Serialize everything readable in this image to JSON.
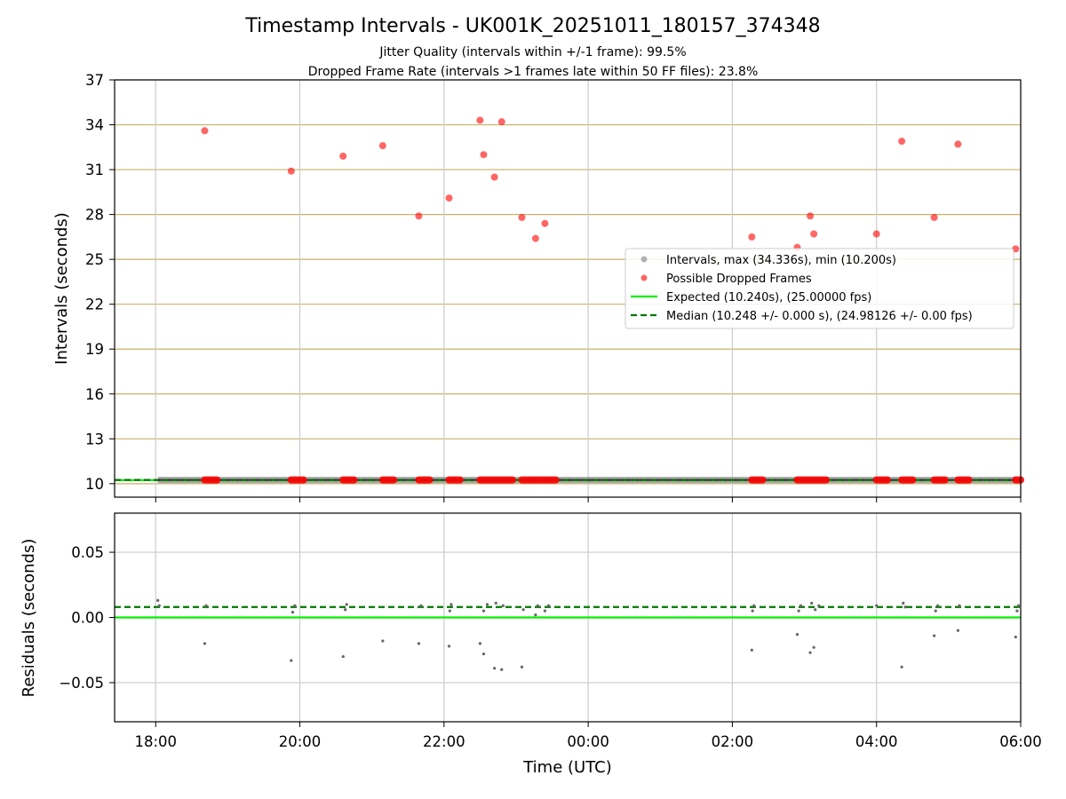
{
  "chart_data": {
    "type": "scatter",
    "title": "Timestamp Intervals - UK001K_20251011_180157_374348",
    "subtitle_lines": [
      "Jitter Quality (intervals within +/-1 frame): 99.5%",
      "Dropped Frame Rate (intervals >1 frames late within 50 FF files): 23.8%"
    ],
    "xlabel": "Time (UTC)",
    "x_unit": "hours since 18:00 UTC",
    "xlim": [
      -0.57,
      12.0
    ],
    "x_ticks": [
      0,
      2,
      4,
      6,
      8,
      10,
      12
    ],
    "x_tick_labels": [
      "18:00",
      "20:00",
      "22:00",
      "00:00",
      "02:00",
      "04:00",
      "06:00"
    ],
    "top_panel": {
      "ylabel": "Intervals (seconds)",
      "ylim": [
        9.1,
        37.0
      ],
      "y_ticks": [
        10,
        13,
        16,
        19,
        22,
        25,
        28,
        31,
        34,
        37
      ],
      "y_tick_labels": [
        "10",
        "13",
        "16",
        "19",
        "22",
        "25",
        "28",
        "31",
        "34",
        "37"
      ],
      "expected_interval": 10.24,
      "median_interval": 10.248,
      "interval_band": {
        "x_start": 0.03,
        "x_end": 12.0,
        "y": 10.25
      },
      "dropped_frames_high": [
        {
          "x": 0.68,
          "y": 33.6
        },
        {
          "x": 1.88,
          "y": 30.9
        },
        {
          "x": 2.6,
          "y": 31.9
        },
        {
          "x": 3.15,
          "y": 32.6
        },
        {
          "x": 3.65,
          "y": 27.9
        },
        {
          "x": 4.07,
          "y": 29.1
        },
        {
          "x": 4.5,
          "y": 34.3
        },
        {
          "x": 4.55,
          "y": 32.0
        },
        {
          "x": 4.7,
          "y": 30.5
        },
        {
          "x": 4.8,
          "y": 34.2
        },
        {
          "x": 5.08,
          "y": 27.8
        },
        {
          "x": 5.27,
          "y": 26.4
        },
        {
          "x": 5.4,
          "y": 27.4
        },
        {
          "x": 8.27,
          "y": 26.5
        },
        {
          "x": 8.9,
          "y": 25.8
        },
        {
          "x": 9.08,
          "y": 27.9
        },
        {
          "x": 9.13,
          "y": 26.7
        },
        {
          "x": 10.0,
          "y": 26.7
        },
        {
          "x": 10.35,
          "y": 32.9
        },
        {
          "x": 10.8,
          "y": 27.8
        },
        {
          "x": 11.13,
          "y": 32.7
        },
        {
          "x": 11.93,
          "y": 25.7
        }
      ],
      "dropped_frames_baseline_segments": [
        [
          0.68,
          0.85
        ],
        [
          1.88,
          2.05
        ],
        [
          2.6,
          2.75
        ],
        [
          3.15,
          3.3
        ],
        [
          3.65,
          3.8
        ],
        [
          4.07,
          4.22
        ],
        [
          4.5,
          4.95
        ],
        [
          5.08,
          5.55
        ],
        [
          8.27,
          8.42
        ],
        [
          8.9,
          9.3
        ],
        [
          10.0,
          10.15
        ],
        [
          10.35,
          10.5
        ],
        [
          10.8,
          10.95
        ],
        [
          11.13,
          11.28
        ],
        [
          11.93,
          12.0
        ]
      ]
    },
    "bottom_panel": {
      "ylabel": "Residuals (seconds)",
      "ylim": [
        -0.08,
        0.08
      ],
      "y_ticks": [
        -0.05,
        0.0,
        0.05
      ],
      "y_tick_labels": [
        "−0.05",
        "0.00",
        "0.05"
      ],
      "expected_residual": 0.0,
      "median_residual": 0.008,
      "residual_points": [
        {
          "x": 0.03,
          "y": 0.013
        },
        {
          "x": 0.05,
          "y": 0.009
        },
        {
          "x": 0.68,
          "y": -0.02
        },
        {
          "x": 0.7,
          "y": 0.009
        },
        {
          "x": 1.88,
          "y": -0.033
        },
        {
          "x": 1.9,
          "y": 0.004
        },
        {
          "x": 1.93,
          "y": 0.009
        },
        {
          "x": 2.6,
          "y": -0.03
        },
        {
          "x": 2.63,
          "y": 0.006
        },
        {
          "x": 2.65,
          "y": 0.01
        },
        {
          "x": 3.15,
          "y": -0.018
        },
        {
          "x": 3.65,
          "y": -0.02
        },
        {
          "x": 3.68,
          "y": 0.009
        },
        {
          "x": 4.07,
          "y": -0.022
        },
        {
          "x": 4.08,
          "y": 0.005
        },
        {
          "x": 4.1,
          "y": 0.01
        },
        {
          "x": 4.5,
          "y": -0.02
        },
        {
          "x": 4.55,
          "y": -0.028
        },
        {
          "x": 4.55,
          "y": 0.005
        },
        {
          "x": 4.6,
          "y": 0.01
        },
        {
          "x": 4.7,
          "y": -0.039
        },
        {
          "x": 4.72,
          "y": 0.011
        },
        {
          "x": 4.8,
          "y": -0.04
        },
        {
          "x": 4.82,
          "y": 0.009
        },
        {
          "x": 5.08,
          "y": -0.038
        },
        {
          "x": 5.1,
          "y": 0.006
        },
        {
          "x": 5.27,
          "y": 0.002
        },
        {
          "x": 5.3,
          "y": 0.009
        },
        {
          "x": 5.4,
          "y": 0.005
        },
        {
          "x": 5.45,
          "y": 0.009
        },
        {
          "x": 8.27,
          "y": -0.025
        },
        {
          "x": 8.28,
          "y": 0.005
        },
        {
          "x": 8.3,
          "y": 0.009
        },
        {
          "x": 8.9,
          "y": -0.013
        },
        {
          "x": 8.92,
          "y": 0.005
        },
        {
          "x": 8.95,
          "y": 0.009
        },
        {
          "x": 9.08,
          "y": -0.027
        },
        {
          "x": 9.1,
          "y": 0.011
        },
        {
          "x": 9.13,
          "y": -0.023
        },
        {
          "x": 9.15,
          "y": 0.006
        },
        {
          "x": 9.2,
          "y": 0.009
        },
        {
          "x": 10.0,
          "y": 0.009
        },
        {
          "x": 10.35,
          "y": -0.038
        },
        {
          "x": 10.37,
          "y": 0.011
        },
        {
          "x": 10.4,
          "y": 0.008
        },
        {
          "x": 10.8,
          "y": -0.014
        },
        {
          "x": 10.82,
          "y": 0.005
        },
        {
          "x": 10.85,
          "y": 0.009
        },
        {
          "x": 11.13,
          "y": -0.01
        },
        {
          "x": 11.15,
          "y": 0.009
        },
        {
          "x": 11.93,
          "y": -0.015
        },
        {
          "x": 11.95,
          "y": 0.005
        },
        {
          "x": 11.97,
          "y": 0.009
        }
      ]
    },
    "legend": {
      "position": "center-right",
      "entries": [
        {
          "label": "Intervals, max (34.336s), min (10.200s)",
          "marker": "circle",
          "color": "#808080"
        },
        {
          "label": "Possible Dropped Frames",
          "marker": "circle",
          "color": "#ff0000"
        },
        {
          "label": "Expected (10.240s), (25.00000 fps)",
          "marker": "line",
          "color": "#00ee00"
        },
        {
          "label": "Median (10.248 +/- 0.000 s), (24.98126 +/- 0.00 fps)",
          "marker": "dashed-line",
          "color": "#007700"
        }
      ]
    },
    "colors": {
      "expected": "#00ee00",
      "median": "#007700",
      "dropped": "#ff0000",
      "intervals": "#808080",
      "residual_points": "#666666",
      "top_hgrid": "#c9b16a",
      "vgrid": "#cccccc",
      "bottom_grid": "#cccccc"
    }
  }
}
